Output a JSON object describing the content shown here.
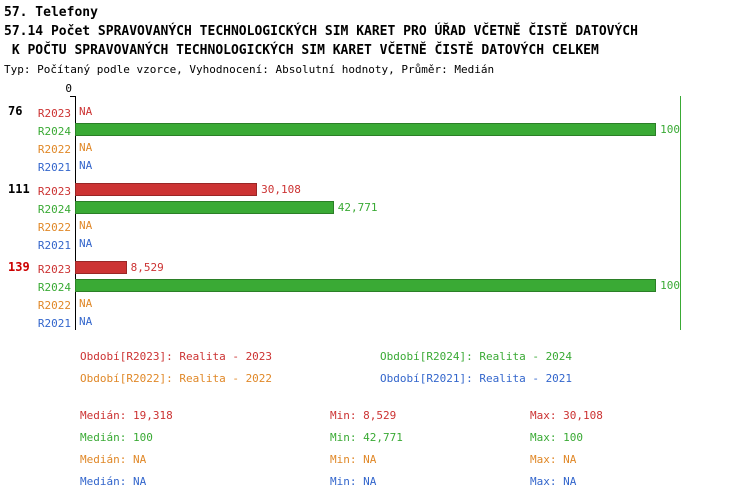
{
  "header": {
    "category": "57. Telefony",
    "title_line1": "57.14 Počet SPRAVOVANÝCH TECHNOLOGICKÝCH SIM KARET PRO ÚŘAD VČETNĚ ČISTĚ DATOVÝCH",
    "title_line2": " K POČTU SPRAVOVANÝCH TECHNOLOGICKÝCH SIM KARET VČETNĚ ČISTĚ DATOVÝCH CELKEM",
    "meta": "Typ: Počítaný podle vzorce, Vyhodnocení: Absolutní hodnoty, Průměr: Medián"
  },
  "colors": {
    "R2023": "#cc3333",
    "R2024": "#3aaa35",
    "R2022": "#e08828",
    "R2021": "#3366cc",
    "axis": "#000000",
    "max_line": "#3aaa35",
    "highlight_group": "#cc0000",
    "normal_group": "#000000"
  },
  "chart_data": {
    "type": "bar",
    "orientation": "horizontal",
    "axis": {
      "min": 0,
      "max": 100,
      "zero_label": "0"
    },
    "series_order": [
      "R2023",
      "R2024",
      "R2022",
      "R2021"
    ],
    "groups": [
      {
        "label": "76",
        "label_color": "#000000",
        "rows": [
          {
            "period": "R2023",
            "value": null,
            "label": "NA"
          },
          {
            "period": "R2024",
            "value": 100,
            "label": "100"
          },
          {
            "period": "R2022",
            "value": null,
            "label": "NA"
          },
          {
            "period": "R2021",
            "value": null,
            "label": "NA"
          }
        ]
      },
      {
        "label": "111",
        "label_color": "#000000",
        "rows": [
          {
            "period": "R2023",
            "value": 30.108,
            "label": "30,108"
          },
          {
            "period": "R2024",
            "value": 42.771,
            "label": "42,771"
          },
          {
            "period": "R2022",
            "value": null,
            "label": "NA"
          },
          {
            "period": "R2021",
            "value": null,
            "label": "NA"
          }
        ]
      },
      {
        "label": "139",
        "label_color": "#cc0000",
        "rows": [
          {
            "period": "R2023",
            "value": 8.529,
            "label": "8,529"
          },
          {
            "period": "R2024",
            "value": 100,
            "label": "100"
          },
          {
            "period": "R2022",
            "value": null,
            "label": "NA"
          },
          {
            "period": "R2021",
            "value": null,
            "label": "NA"
          }
        ]
      }
    ]
  },
  "legend": {
    "items": [
      {
        "series": "R2023",
        "text": "Období[R2023]: Realita - 2023"
      },
      {
        "series": "R2024",
        "text": "Období[R2024]: Realita - 2024"
      },
      {
        "series": "R2022",
        "text": "Období[R2022]: Realita - 2022"
      },
      {
        "series": "R2021",
        "text": "Období[R2021]: Realita - 2021"
      }
    ]
  },
  "stats": {
    "labels": {
      "median": "Medián:",
      "min": "Min:",
      "max": "Max:"
    },
    "rows": [
      {
        "series": "R2023",
        "median": "19,318",
        "min": "8,529",
        "max": "30,108"
      },
      {
        "series": "R2024",
        "median": "100",
        "min": "42,771",
        "max": "100"
      },
      {
        "series": "R2022",
        "median": "NA",
        "min": "NA",
        "max": "NA"
      },
      {
        "series": "R2021",
        "median": "NA",
        "min": "NA",
        "max": "NA"
      }
    ]
  }
}
